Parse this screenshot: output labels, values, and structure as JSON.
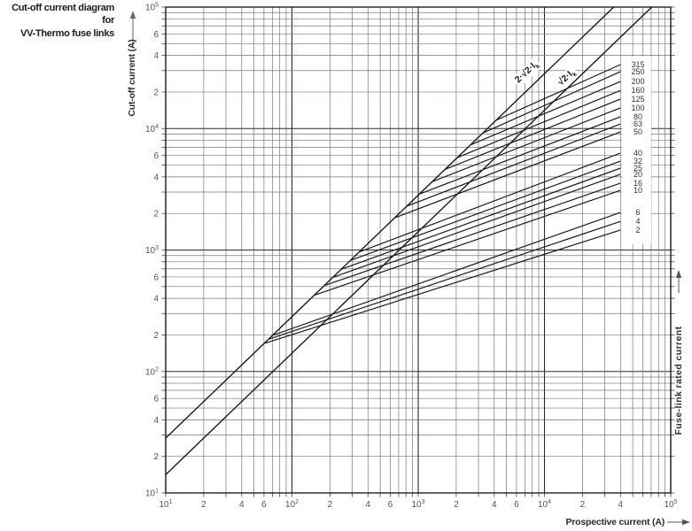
{
  "title": {
    "line1": "Cut-off current diagram for",
    "line2": "VV-Thermo fuse links"
  },
  "y_axis": {
    "title": "Cut-off current (A)",
    "ticks": [
      {
        "v": 10,
        "base": "10",
        "sup": "1"
      },
      {
        "v": 20,
        "label": "2"
      },
      {
        "v": 40,
        "label": "4"
      },
      {
        "v": 60,
        "label": "6"
      },
      {
        "v": 100,
        "base": "10",
        "sup": "2"
      },
      {
        "v": 200,
        "label": "2"
      },
      {
        "v": 400,
        "label": "4"
      },
      {
        "v": 600,
        "label": "6"
      },
      {
        "v": 1000,
        "base": "10",
        "sup": "3"
      },
      {
        "v": 2000,
        "label": "2"
      },
      {
        "v": 4000,
        "label": "4"
      },
      {
        "v": 6000,
        "label": "6"
      },
      {
        "v": 10000,
        "base": "10",
        "sup": "4"
      },
      {
        "v": 20000,
        "label": "2"
      },
      {
        "v": 40000,
        "label": "4"
      },
      {
        "v": 60000,
        "label": "6"
      },
      {
        "v": 100000,
        "base": "10",
        "sup": "5"
      }
    ]
  },
  "x_axis": {
    "title": "Prospective current (A)",
    "ticks": [
      {
        "v": 10,
        "base": "10",
        "sup": "1"
      },
      {
        "v": 20,
        "label": "2"
      },
      {
        "v": 40,
        "label": "4"
      },
      {
        "v": 60,
        "label": "6"
      },
      {
        "v": 100,
        "base": "10",
        "sup": "2"
      },
      {
        "v": 200,
        "label": "2"
      },
      {
        "v": 400,
        "label": "4"
      },
      {
        "v": 600,
        "label": "6"
      },
      {
        "v": 1000,
        "base": "10",
        "sup": "3"
      },
      {
        "v": 2000,
        "label": "2"
      },
      {
        "v": 4000,
        "label": "4"
      },
      {
        "v": 6000,
        "label": "6"
      },
      {
        "v": 10000,
        "base": "10",
        "sup": "4"
      },
      {
        "v": 20000,
        "label": "2"
      },
      {
        "v": 40000,
        "label": "4"
      },
      {
        "v": 100000,
        "base": "10",
        "sup": "5"
      }
    ]
  },
  "right_axis_title": "Fuse-link rated current",
  "reference_labels": {
    "line1_text": "2·√2·I",
    "line1_sub": "k",
    "line2_text": "√2·I",
    "line2_sub": "k"
  },
  "colors": {
    "line": "#1a1a1a",
    "grid_major": "#2b2b2b",
    "grid_minor": "#777777",
    "tick_text": "#555555",
    "background": "#ffffff"
  },
  "chart_data": {
    "type": "line",
    "title": "Cut-off current diagram for VV-Thermo fuse links",
    "xlabel": "Prospective current (A)",
    "ylabel": "Cut-off current (A)",
    "right_label": "Fuse-link rated current",
    "xscale": "log",
    "yscale": "log",
    "xlim": [
      10,
      100000
    ],
    "ylim": [
      10,
      100000
    ],
    "grid": "log decades with minor lines 2-9",
    "reference_lines": [
      {
        "label": "2·√2·Ik",
        "factor": 2.828,
        "slope_loglog": 1
      },
      {
        "label": "√2·Ik",
        "factor": 1.414,
        "slope_loglog": 1
      }
    ],
    "fuse_line_end_prospective_A": 40000,
    "series": [
      {
        "rating": "2",
        "branch_prospective_A": 60,
        "cutoff_at_end_A": 1460
      },
      {
        "rating": "4",
        "branch_prospective_A": 65,
        "cutoff_at_end_A": 1720
      },
      {
        "rating": "6",
        "branch_prospective_A": 70,
        "cutoff_at_end_A": 2040
      },
      {
        "rating": "10",
        "branch_prospective_A": 150,
        "cutoff_at_end_A": 3100
      },
      {
        "rating": "16",
        "branch_prospective_A": 180,
        "cutoff_at_end_A": 3550
      },
      {
        "rating": "20",
        "branch_prospective_A": 210,
        "cutoff_at_end_A": 4200
      },
      {
        "rating": "25",
        "branch_prospective_A": 245,
        "cutoff_at_end_A": 4720
      },
      {
        "rating": "32",
        "branch_prospective_A": 290,
        "cutoff_at_end_A": 5390
      },
      {
        "rating": "40",
        "branch_prospective_A": 340,
        "cutoff_at_end_A": 6280
      },
      {
        "rating": "50",
        "branch_prospective_A": 650,
        "cutoff_at_end_A": 9380
      },
      {
        "rating": "63",
        "branch_prospective_A": 810,
        "cutoff_at_end_A": 10900
      },
      {
        "rating": "80",
        "branch_prospective_A": 1020,
        "cutoff_at_end_A": 12500
      },
      {
        "rating": "100",
        "branch_prospective_A": 1290,
        "cutoff_at_end_A": 14800
      },
      {
        "rating": "125",
        "branch_prospective_A": 1630,
        "cutoff_at_end_A": 17500
      },
      {
        "rating": "160",
        "branch_prospective_A": 2040,
        "cutoff_at_end_A": 20600
      },
      {
        "rating": "200",
        "branch_prospective_A": 2590,
        "cutoff_at_end_A": 24400
      },
      {
        "rating": "250",
        "branch_prospective_A": 3250,
        "cutoff_at_end_A": 29400
      },
      {
        "rating": "315",
        "branch_prospective_A": 4140,
        "cutoff_at_end_A": 33600
      }
    ]
  }
}
